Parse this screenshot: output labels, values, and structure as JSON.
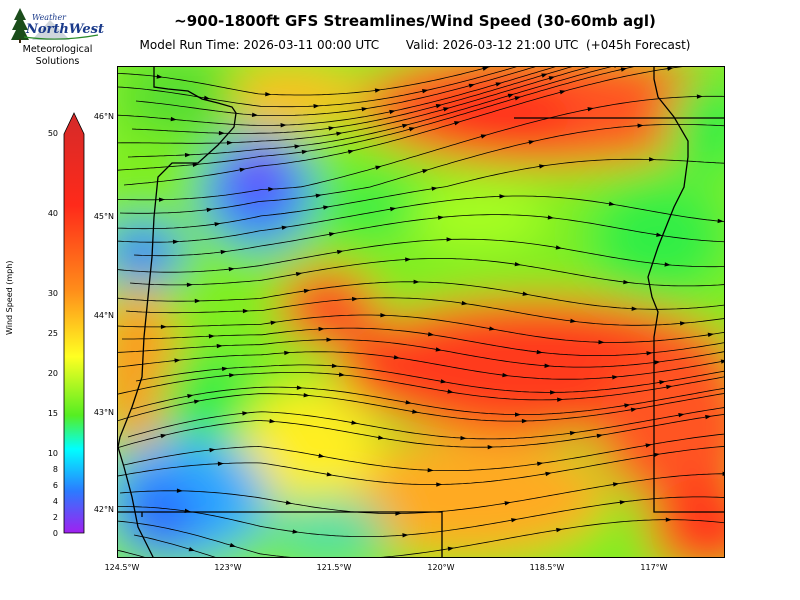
{
  "title": "~900-1800ft GFS Streamlines/Wind Speed (30-60mb agl)",
  "subtitle": "Model Run Time: 2026-03-11 00:00 UTC       Valid: 2026-03-12 21:00 UTC  (+045h Forecast)",
  "logo": {
    "line1": "Meteorological",
    "line2": "Solutions",
    "brand_top": "Weather",
    "brand_main": "NorthWest"
  },
  "map": {
    "lat_labels": [
      "46°N",
      "45°N",
      "44°N",
      "43°N",
      "42°N"
    ],
    "lon_labels": [
      "124.5°W",
      "123°W",
      "121.5°W",
      "120°W",
      "118.5°W",
      "117°W"
    ]
  },
  "colorbar": {
    "label": "Wind Speed (mph)",
    "ticks": [
      "50",
      "40",
      "30",
      "25",
      "20",
      "15",
      "10",
      "8",
      "6",
      "4",
      "2",
      "0"
    ],
    "colors": [
      "#d42a2a",
      "#ff2a1a",
      "#ff8c1a",
      "#ffff22",
      "#55ee22",
      "#00ffff",
      "#2b7bff",
      "#a020f0"
    ]
  }
}
